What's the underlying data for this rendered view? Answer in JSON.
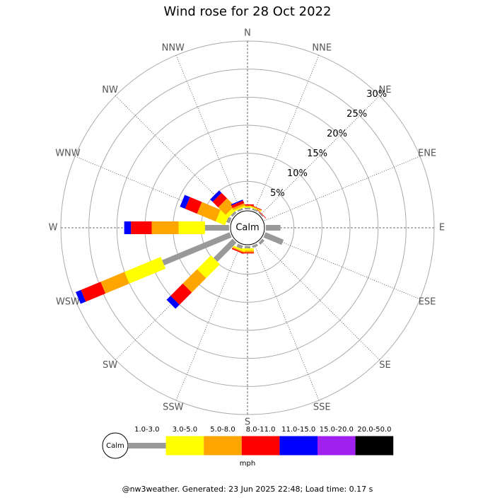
{
  "chart_data": {
    "type": "wind_rose",
    "title": "Wind rose for 28 Oct 2022",
    "directions": [
      "N",
      "NNE",
      "NE",
      "ENE",
      "E",
      "ESE",
      "SE",
      "SSE",
      "S",
      "SSW",
      "SW",
      "WSW",
      "W",
      "WNW",
      "NW",
      "NNW"
    ],
    "calm_label": "Calm",
    "rlim": [
      0,
      30
    ],
    "rticks": [
      {
        "value": 5,
        "label": "5%"
      },
      {
        "value": 10,
        "label": "10%"
      },
      {
        "value": 15,
        "label": "15%"
      },
      {
        "value": 20,
        "label": "20%"
      },
      {
        "value": 25,
        "label": "25%"
      },
      {
        "value": 30,
        "label": "30%"
      }
    ],
    "series": [
      {
        "name": "1.0-3.0",
        "color": "#999999",
        "values": [
          0.3,
          0.3,
          0.2,
          0,
          2.6,
          3.5,
          0.5,
          0.4,
          0.4,
          0.6,
          4.8,
          13,
          4.3,
          0.6,
          0.4,
          0.3
        ]
      },
      {
        "name": "3.0-5.0",
        "color": "#ffff00",
        "values": [
          0.2,
          0.2,
          0,
          0,
          0,
          0,
          0,
          0,
          0.4,
          0.3,
          3.5,
          7,
          4.7,
          1.8,
          0.7,
          0.3
        ]
      },
      {
        "name": "5.0-8.0",
        "color": "#ffa500",
        "values": [
          0.2,
          0.1,
          0,
          0,
          0,
          0,
          0,
          0,
          0.3,
          0.2,
          3.6,
          4.6,
          4.8,
          3.6,
          1.9,
          0.4
        ]
      },
      {
        "name": "8.0-11.0",
        "color": "#ff0000",
        "values": [
          0.2,
          0.1,
          0.1,
          0,
          0,
          0,
          0,
          0,
          0.2,
          0.2,
          3.1,
          3.8,
          3.7,
          2.3,
          1.4,
          0.5
        ]
      },
      {
        "name": "11.0-15.0",
        "color": "#0000ff",
        "values": [
          0,
          0,
          0,
          0,
          0,
          0,
          0,
          0,
          0,
          0,
          1.0,
          1.0,
          1.2,
          1.0,
          0.6,
          0.2
        ]
      },
      {
        "name": "15.0-20.0",
        "color": "#a020f0",
        "values": [
          0,
          0,
          0,
          0,
          0,
          0,
          0,
          0,
          0,
          0,
          0,
          0,
          0,
          0,
          0,
          0
        ]
      },
      {
        "name": "20.0-50.0",
        "color": "#000000",
        "values": [
          0,
          0,
          0,
          0,
          0,
          0,
          0,
          0,
          0,
          0,
          0,
          0,
          0,
          0,
          0,
          0
        ]
      }
    ],
    "unit": "mph",
    "footer": "@nw3weather. Generated: 23 Jun 2025 22:48; Load time: 0.17 s"
  }
}
